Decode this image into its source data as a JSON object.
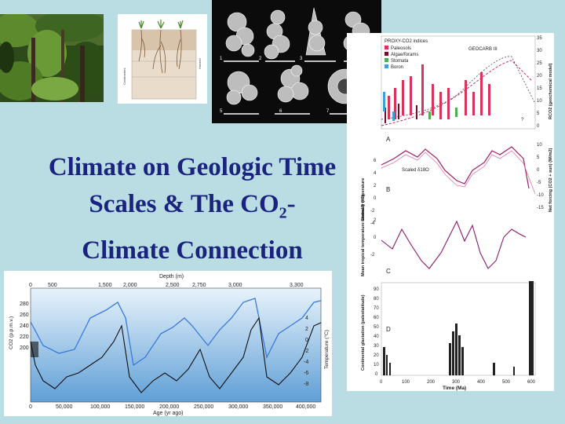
{
  "slide": {
    "title_line1": "Climate on Geologic Time",
    "title_line2a": "Scales & The CO",
    "title_line2_sub": "2",
    "title_line2b": "-",
    "title_line3": "Climate Connection"
  },
  "foram_panel": {
    "labels": [
      "1",
      "2",
      "3",
      "4",
      "5",
      "6",
      "7"
    ]
  },
  "soil_panel": {
    "left_axis_label": "Centimeters",
    "right_axis_label": "Horizon"
  },
  "ice_core_chart": {
    "top_axis_label": "Depth (m)",
    "top_ticks": [
      "0",
      "500",
      "1,500",
      "2,000",
      "2,500",
      "2,750",
      "3,000",
      "3,300"
    ],
    "bottom_axis_label": "Age (yr ago)",
    "bottom_ticks": [
      "0",
      "50,000",
      "100,000",
      "150,000",
      "200,000",
      "250,000",
      "300,000",
      "350,000",
      "400,000"
    ],
    "left_axis_label": "CO2 (p.p.m.v.)",
    "left_ticks": [
      "280",
      "260",
      "240",
      "220",
      "200"
    ],
    "right_axis_label": "Temperature (°C)",
    "right_ticks": [
      "4",
      "2",
      "0",
      "-2",
      "-4",
      "-6",
      "-8"
    ],
    "colors": {
      "co2": "#3a7ad8",
      "temp": "#111111"
    }
  },
  "phanerozoic_chart": {
    "legend_title": "PROXY-CO2 indices",
    "legend": [
      {
        "label": "Paleosols",
        "color": "#d8335a"
      },
      {
        "label": "Algae/forams",
        "color": "#7a0a2a"
      },
      {
        "label": "Stomata",
        "color": "#4caf50"
      },
      {
        "label": "Boron",
        "color": "#3ea0d8"
      }
    ],
    "geocarb_label": "GEOCARB III",
    "panel_letters": [
      "A",
      "B",
      "C",
      "D"
    ],
    "scaled_label": "Scaled δ18O",
    "panel_a_right_ticks": [
      "35",
      "30",
      "25",
      "20",
      "15",
      "10",
      "5",
      "0"
    ],
    "panel_a_right_label": "RCO2 (geochemical model)",
    "panel_b_right_ticks": [
      "10",
      "5",
      "0",
      "-5",
      "-10",
      "-15"
    ],
    "panel_b_right_label": "Net forcing (CO2 + sun) (W/m2)",
    "panel_b_left_ticks": [
      "6",
      "4",
      "2",
      "0",
      "-2",
      "-4"
    ],
    "panel_b_left_label": "Global δ temperature",
    "panel_c_left_ticks": [
      "2",
      "0",
      "-2"
    ],
    "panel_c_left_label": "Mean tropical temperature anomaly (°C)",
    "panel_d_left_ticks": [
      "90",
      "80",
      "70",
      "60",
      "50",
      "40",
      "30",
      "20",
      "10",
      "0"
    ],
    "panel_d_left_label": "Continental glaciation (paleolatitude)",
    "x_ticks": [
      "0",
      "100",
      "200",
      "300",
      "400",
      "500",
      "600"
    ],
    "x_label": "Time (Ma)",
    "question_mark": "?"
  }
}
